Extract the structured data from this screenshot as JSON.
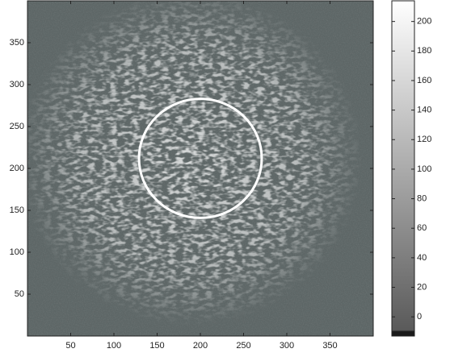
{
  "chart_data": {
    "type": "image",
    "xlim": [
      0,
      400
    ],
    "ylim": [
      0,
      400
    ],
    "xticks": [
      50,
      100,
      150,
      200,
      250,
      300,
      350
    ],
    "yticks": [
      50,
      100,
      150,
      200,
      250,
      300,
      350
    ],
    "circle": {
      "cx": 200,
      "cy": 212,
      "r": 71,
      "color": "#ffffff"
    },
    "colorbar": {
      "clim": [
        -13,
        214
      ],
      "ticks": [
        0,
        20,
        40,
        60,
        80,
        100,
        120,
        140,
        160,
        180,
        200
      ],
      "colormap": [
        {
          "value": -13,
          "color": "#1a1a1a"
        },
        {
          "value": -10,
          "color": "#1a1a1a"
        },
        {
          "value": -9,
          "color": "#5a5a5a"
        },
        {
          "value": 214,
          "color": "#ffffff"
        }
      ]
    }
  }
}
